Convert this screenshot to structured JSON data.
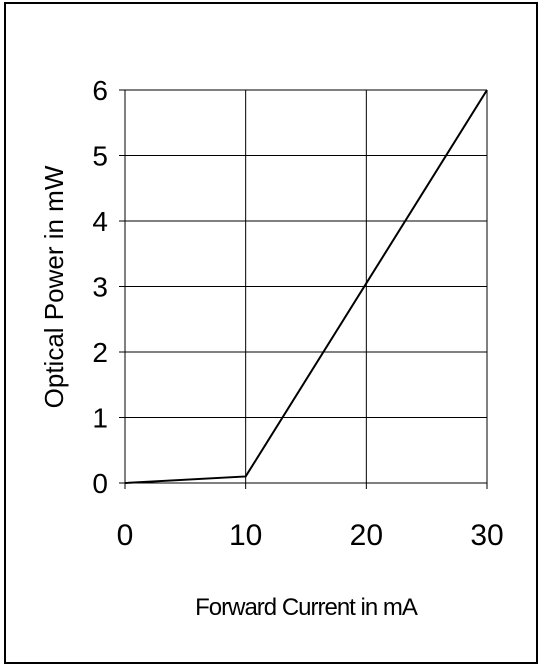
{
  "chart_data": {
    "type": "line",
    "title": "",
    "xlabel": "Forward Current in mA",
    "ylabel": "Optical Power in mW",
    "xlim": [
      0,
      30
    ],
    "ylim": [
      0,
      6
    ],
    "xticks": [
      0,
      10,
      20,
      30
    ],
    "yticks": [
      0,
      1,
      2,
      3,
      4,
      5,
      6
    ],
    "grid": true,
    "legend": "none",
    "series": [
      {
        "x": [
          0,
          10,
          30
        ],
        "y": [
          0,
          0.1,
          6
        ],
        "color": "#000000"
      }
    ]
  }
}
